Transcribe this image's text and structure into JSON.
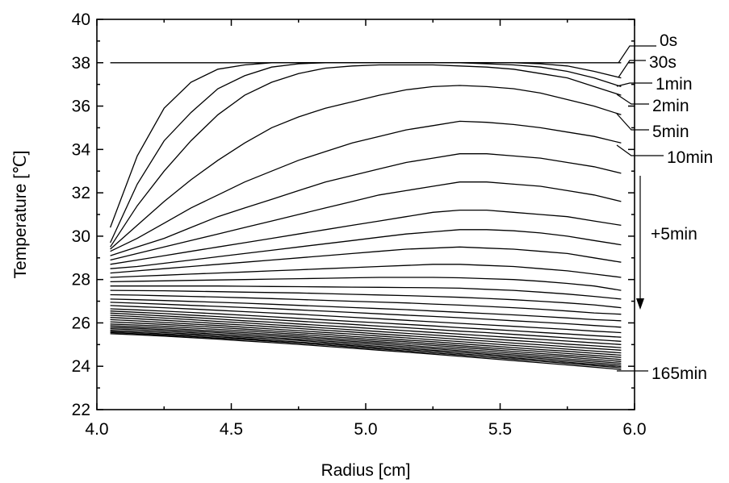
{
  "chart_data": {
    "type": "line",
    "xlabel": "Radius [cm]",
    "ylabel": "Temperature [℃]",
    "xlim": [
      4.0,
      6.0
    ],
    "ylim": [
      22,
      40
    ],
    "xticks": [
      "4.0",
      "4.5",
      "5.0",
      "5.5",
      "6.0"
    ],
    "yticks": [
      "22",
      "24",
      "26",
      "28",
      "30",
      "32",
      "34",
      "36",
      "38",
      "40"
    ],
    "grid": false,
    "legend": "none",
    "annotations": {
      "labels": [
        "0s",
        "30s",
        "1min",
        "2min",
        "5min",
        "10min",
        "165min"
      ],
      "interval_label": "+5min"
    },
    "x": [
      4.05,
      4.15,
      4.25,
      4.35,
      4.45,
      4.55,
      4.65,
      4.75,
      4.85,
      4.95,
      5.05,
      5.15,
      5.25,
      5.35,
      5.45,
      5.55,
      5.65,
      5.75,
      5.85,
      5.95
    ],
    "series": [
      {
        "name": "0s",
        "values": [
          38,
          38,
          38,
          38,
          38,
          38,
          38,
          38,
          38,
          38,
          38,
          38,
          38,
          38,
          38,
          38,
          38,
          38,
          38,
          38
        ]
      },
      {
        "name": "30s",
        "values": [
          30.4,
          33.7,
          35.9,
          37.1,
          37.7,
          37.9,
          38.0,
          38.0,
          38.0,
          38.0,
          38.0,
          38.0,
          38.0,
          38.0,
          38.0,
          38.0,
          37.95,
          37.85,
          37.6,
          37.3
        ]
      },
      {
        "name": "1min",
        "values": [
          29.7,
          32.4,
          34.4,
          35.7,
          36.8,
          37.4,
          37.8,
          37.95,
          38.0,
          38.0,
          38.0,
          38.0,
          38.0,
          38.0,
          37.95,
          37.9,
          37.8,
          37.6,
          37.3,
          36.9
        ]
      },
      {
        "name": "2min",
        "values": [
          29.5,
          31.4,
          33.0,
          34.4,
          35.6,
          36.5,
          37.1,
          37.5,
          37.75,
          37.85,
          37.9,
          37.9,
          37.9,
          37.85,
          37.8,
          37.7,
          37.5,
          37.3,
          36.9,
          36.5
        ]
      },
      {
        "name": "5min",
        "values": [
          29.4,
          30.5,
          31.6,
          32.6,
          33.5,
          34.3,
          35.0,
          35.5,
          35.9,
          36.2,
          36.5,
          36.75,
          36.9,
          36.95,
          36.9,
          36.8,
          36.6,
          36.3,
          36.0,
          35.6
        ]
      },
      {
        "name": "10min",
        "values": [
          29.3,
          29.9,
          30.6,
          31.3,
          31.9,
          32.5,
          33.0,
          33.5,
          33.9,
          34.3,
          34.6,
          34.9,
          35.1,
          35.3,
          35.25,
          35.15,
          35.0,
          34.8,
          34.6,
          34.3
        ]
      },
      {
        "name": "",
        "values": [
          29.1,
          29.5,
          29.9,
          30.4,
          30.9,
          31.3,
          31.7,
          32.1,
          32.5,
          32.8,
          33.1,
          33.4,
          33.6,
          33.8,
          33.8,
          33.7,
          33.6,
          33.4,
          33.2,
          32.9
        ]
      },
      {
        "name": "",
        "values": [
          28.9,
          29.2,
          29.5,
          29.8,
          30.1,
          30.4,
          30.7,
          31.0,
          31.3,
          31.6,
          31.9,
          32.1,
          32.3,
          32.5,
          32.5,
          32.4,
          32.3,
          32.1,
          31.9,
          31.6
        ]
      },
      {
        "name": "",
        "values": [
          28.7,
          28.9,
          29.1,
          29.3,
          29.5,
          29.7,
          29.9,
          30.1,
          30.3,
          30.5,
          30.7,
          30.9,
          31.1,
          31.2,
          31.2,
          31.1,
          31.0,
          30.9,
          30.7,
          30.5
        ]
      },
      {
        "name": "",
        "values": [
          28.5,
          28.6,
          28.75,
          28.9,
          29.05,
          29.2,
          29.35,
          29.5,
          29.65,
          29.8,
          29.95,
          30.1,
          30.2,
          30.3,
          30.3,
          30.25,
          30.15,
          30.0,
          29.8,
          29.6
        ]
      },
      {
        "name": "",
        "values": [
          28.3,
          28.4,
          28.5,
          28.6,
          28.7,
          28.8,
          28.9,
          29.0,
          29.1,
          29.2,
          29.3,
          29.4,
          29.45,
          29.5,
          29.45,
          29.4,
          29.3,
          29.2,
          29.0,
          28.8
        ]
      },
      {
        "name": "",
        "values": [
          28.1,
          28.15,
          28.2,
          28.25,
          28.3,
          28.35,
          28.4,
          28.45,
          28.5,
          28.55,
          28.6,
          28.65,
          28.7,
          28.7,
          28.65,
          28.6,
          28.5,
          28.4,
          28.25,
          28.1
        ]
      },
      {
        "name": "",
        "values": [
          27.9,
          27.92,
          27.94,
          27.96,
          27.98,
          28.0,
          28.02,
          28.04,
          28.06,
          28.08,
          28.1,
          28.1,
          28.1,
          28.08,
          28.04,
          28.0,
          27.92,
          27.82,
          27.7,
          27.5
        ]
      },
      {
        "name": "",
        "values": [
          27.7,
          27.7,
          27.7,
          27.7,
          27.7,
          27.69,
          27.68,
          27.67,
          27.66,
          27.65,
          27.64,
          27.63,
          27.62,
          27.6,
          27.55,
          27.5,
          27.42,
          27.33,
          27.22,
          27.1
        ]
      },
      {
        "name": "",
        "values": [
          27.5,
          27.49,
          27.48,
          27.46,
          27.44,
          27.42,
          27.4,
          27.38,
          27.35,
          27.32,
          27.29,
          27.26,
          27.22,
          27.18,
          27.13,
          27.07,
          27.0,
          26.92,
          26.83,
          26.7
        ]
      },
      {
        "name": "",
        "values": [
          27.3,
          27.28,
          27.25,
          27.22,
          27.19,
          27.16,
          27.12,
          27.08,
          27.04,
          27.0,
          26.96,
          26.92,
          26.87,
          26.82,
          26.76,
          26.7,
          26.63,
          26.55,
          26.46,
          26.4
        ]
      },
      {
        "name": "",
        "values": [
          27.1,
          27.07,
          27.03,
          26.99,
          26.95,
          26.91,
          26.86,
          26.81,
          26.76,
          26.71,
          26.66,
          26.61,
          26.55,
          26.49,
          26.43,
          26.37,
          26.3,
          26.23,
          26.15,
          26.1
        ]
      },
      {
        "name": "",
        "values": [
          26.95,
          26.91,
          26.86,
          26.81,
          26.76,
          26.71,
          26.66,
          26.6,
          26.54,
          26.48,
          26.42,
          26.36,
          26.3,
          26.24,
          26.17,
          26.1,
          26.03,
          25.96,
          25.88,
          25.8
        ]
      },
      {
        "name": "",
        "values": [
          26.8,
          26.75,
          26.7,
          26.64,
          26.58,
          26.52,
          26.46,
          26.4,
          26.33,
          26.26,
          26.19,
          26.12,
          26.05,
          25.98,
          25.91,
          25.84,
          25.77,
          25.7,
          25.62,
          25.55
        ]
      },
      {
        "name": "",
        "values": [
          26.65,
          26.6,
          26.54,
          26.48,
          26.42,
          26.35,
          26.28,
          26.21,
          26.14,
          26.07,
          26.0,
          25.93,
          25.86,
          25.78,
          25.71,
          25.64,
          25.56,
          25.49,
          25.41,
          25.34
        ]
      },
      {
        "name": "",
        "values": [
          26.55,
          26.49,
          26.43,
          26.36,
          26.29,
          26.22,
          26.15,
          26.08,
          26.0,
          25.93,
          25.85,
          25.78,
          25.7,
          25.62,
          25.55,
          25.47,
          25.39,
          25.31,
          25.23,
          25.15
        ]
      },
      {
        "name": "",
        "values": [
          26.45,
          26.39,
          26.32,
          26.25,
          26.18,
          26.1,
          26.03,
          25.95,
          25.87,
          25.8,
          25.72,
          25.64,
          25.56,
          25.48,
          25.4,
          25.32,
          25.24,
          25.16,
          25.08,
          25.0
        ]
      },
      {
        "name": "",
        "values": [
          26.35,
          26.29,
          26.22,
          26.15,
          26.07,
          26.0,
          25.92,
          25.84,
          25.76,
          25.68,
          25.6,
          25.52,
          25.44,
          25.36,
          25.27,
          25.19,
          25.11,
          25.02,
          24.94,
          24.86
        ]
      },
      {
        "name": "",
        "values": [
          26.25,
          26.19,
          26.12,
          26.05,
          25.97,
          25.9,
          25.82,
          25.74,
          25.66,
          25.58,
          25.49,
          25.41,
          25.33,
          25.24,
          25.16,
          25.07,
          24.99,
          24.9,
          24.82,
          24.74
        ]
      },
      {
        "name": "",
        "values": [
          26.15,
          26.09,
          26.02,
          25.95,
          25.88,
          25.8,
          25.72,
          25.64,
          25.56,
          25.48,
          25.39,
          25.31,
          25.22,
          25.14,
          25.05,
          24.96,
          24.88,
          24.79,
          24.7,
          24.62
        ]
      },
      {
        "name": "",
        "values": [
          26.05,
          25.99,
          25.93,
          25.86,
          25.79,
          25.71,
          25.63,
          25.55,
          25.47,
          25.38,
          25.3,
          25.21,
          25.13,
          25.04,
          24.95,
          24.86,
          24.77,
          24.69,
          24.6,
          24.51
        ]
      },
      {
        "name": "",
        "values": [
          25.95,
          25.9,
          25.84,
          25.77,
          25.7,
          25.63,
          25.55,
          25.47,
          25.38,
          25.3,
          25.21,
          25.13,
          25.04,
          24.95,
          24.86,
          24.77,
          24.68,
          24.59,
          24.5,
          24.41
        ]
      },
      {
        "name": "",
        "values": [
          25.87,
          25.82,
          25.76,
          25.69,
          25.62,
          25.55,
          25.47,
          25.39,
          25.3,
          25.22,
          25.13,
          25.05,
          24.96,
          24.87,
          24.78,
          24.68,
          24.59,
          24.5,
          24.41,
          24.31
        ]
      },
      {
        "name": "",
        "values": [
          25.8,
          25.75,
          25.69,
          25.62,
          25.55,
          25.48,
          25.4,
          25.32,
          25.23,
          25.15,
          25.06,
          24.97,
          24.88,
          24.79,
          24.7,
          24.6,
          24.51,
          24.42,
          24.32,
          24.22
        ]
      },
      {
        "name": "",
        "values": [
          25.73,
          25.68,
          25.62,
          25.55,
          25.48,
          25.41,
          25.33,
          25.25,
          25.16,
          25.08,
          24.99,
          24.9,
          24.81,
          24.72,
          24.62,
          24.53,
          24.43,
          24.34,
          24.24,
          24.14
        ]
      },
      {
        "name": "",
        "values": [
          25.66,
          25.61,
          25.55,
          25.49,
          25.42,
          25.34,
          25.27,
          25.19,
          25.1,
          25.01,
          24.92,
          24.83,
          24.74,
          24.65,
          24.55,
          24.46,
          24.36,
          24.26,
          24.16,
          24.06
        ]
      },
      {
        "name": "",
        "values": [
          25.6,
          25.55,
          25.49,
          25.43,
          25.36,
          25.28,
          25.2,
          25.12,
          25.04,
          24.95,
          24.86,
          24.77,
          24.68,
          24.58,
          24.49,
          24.39,
          24.29,
          24.19,
          24.09,
          23.99
        ]
      },
      {
        "name": "",
        "values": [
          25.55,
          25.5,
          25.44,
          25.37,
          25.3,
          25.23,
          25.15,
          25.07,
          24.98,
          24.89,
          24.8,
          24.71,
          24.62,
          24.52,
          24.42,
          24.33,
          24.23,
          24.13,
          24.03,
          23.93
        ]
      },
      {
        "name": "165min",
        "values": [
          25.5,
          25.45,
          25.39,
          25.32,
          25.25,
          25.17,
          25.09,
          25.01,
          24.92,
          24.83,
          24.74,
          24.65,
          24.56,
          24.46,
          24.36,
          24.26,
          24.16,
          24.06,
          23.96,
          23.85
        ]
      }
    ]
  }
}
